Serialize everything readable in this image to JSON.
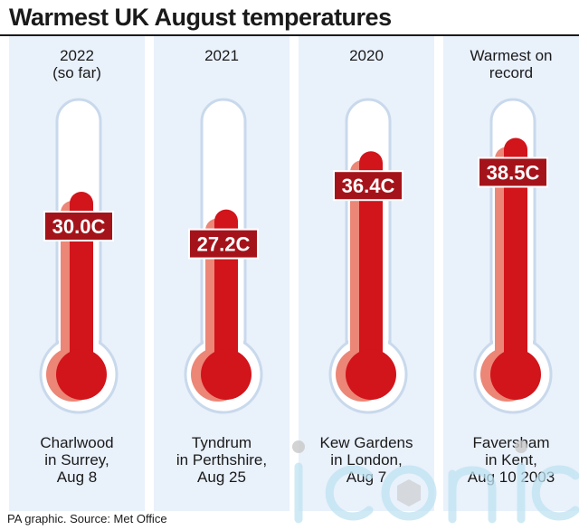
{
  "title": "Warmest UK August temperatures",
  "source": "PA graphic. Source: Met Office",
  "watermark": "iconic",
  "colors": {
    "mercury": "#d2141b",
    "mercury_light": "#ec8677",
    "column_bg": "#e9f1fb",
    "label_bg": "#a5131a"
  },
  "chart_data": {
    "type": "bar",
    "title": "Warmest UK August temperatures",
    "categories": [
      "2022 (so far)",
      "2021",
      "2020",
      "Warmest on record"
    ],
    "values": [
      30.0,
      27.2,
      36.4,
      38.5
    ],
    "value_labels": [
      "30.0C",
      "27.2C",
      "36.4C",
      "38.5C"
    ],
    "unit": "C",
    "columns": [
      {
        "header": [
          "2022",
          "(so far)"
        ],
        "footer": [
          "Charlwood",
          "in Surrey,",
          "Aug 8"
        ]
      },
      {
        "header": [
          "2021"
        ],
        "footer": [
          "Tyndrum",
          "in Perthshire,",
          "Aug 25"
        ]
      },
      {
        "header": [
          "2020"
        ],
        "footer": [
          "Kew Gardens",
          "in London,",
          "Aug 7"
        ]
      },
      {
        "header": [
          "Warmest on",
          "record"
        ],
        "footer": [
          "Faversham",
          "in Kent,",
          "Aug 10 2003"
        ]
      }
    ]
  }
}
